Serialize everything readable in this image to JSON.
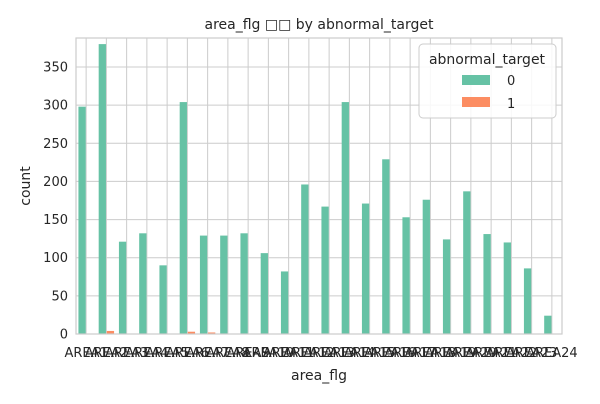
{
  "chart_data": {
    "type": "bar",
    "title": "area_flg □□ by abnormal_target",
    "xlabel": "area_flg",
    "ylabel": "count",
    "ylim": [
      0,
      388
    ],
    "yticks": [
      0,
      50,
      100,
      150,
      200,
      250,
      300,
      350
    ],
    "grid": true,
    "legend": {
      "title": "abnormal_target",
      "placement": "top-right"
    },
    "categories": [
      "AREA1",
      "AREA2",
      "AREA3",
      "AREA4",
      "AREA5",
      "AREA6",
      "AREA7",
      "AREA8",
      "AREA9",
      "AREA10",
      "AREA11",
      "AREA12",
      "AREA13",
      "AREA14",
      "AREA15",
      "AREA16",
      "AREA17",
      "AREA18",
      "AREA19",
      "AREA20",
      "AREA21",
      "AREA22",
      "AREA23",
      "AREA24"
    ],
    "series": [
      {
        "name": "0",
        "color": "#66c2a5",
        "values": [
          298,
          380,
          121,
          132,
          90,
          304,
          129,
          129,
          132,
          106,
          82,
          196,
          167,
          304,
          171,
          229,
          153,
          176,
          124,
          187,
          131,
          120,
          86,
          24
        ]
      },
      {
        "name": "1",
        "color": "#fc8d62",
        "values": [
          0,
          4,
          0,
          0,
          0,
          3,
          2,
          0,
          0,
          0,
          0,
          0,
          0,
          0,
          0,
          0,
          0,
          0,
          0,
          0,
          0,
          0,
          0,
          0
        ]
      }
    ]
  }
}
